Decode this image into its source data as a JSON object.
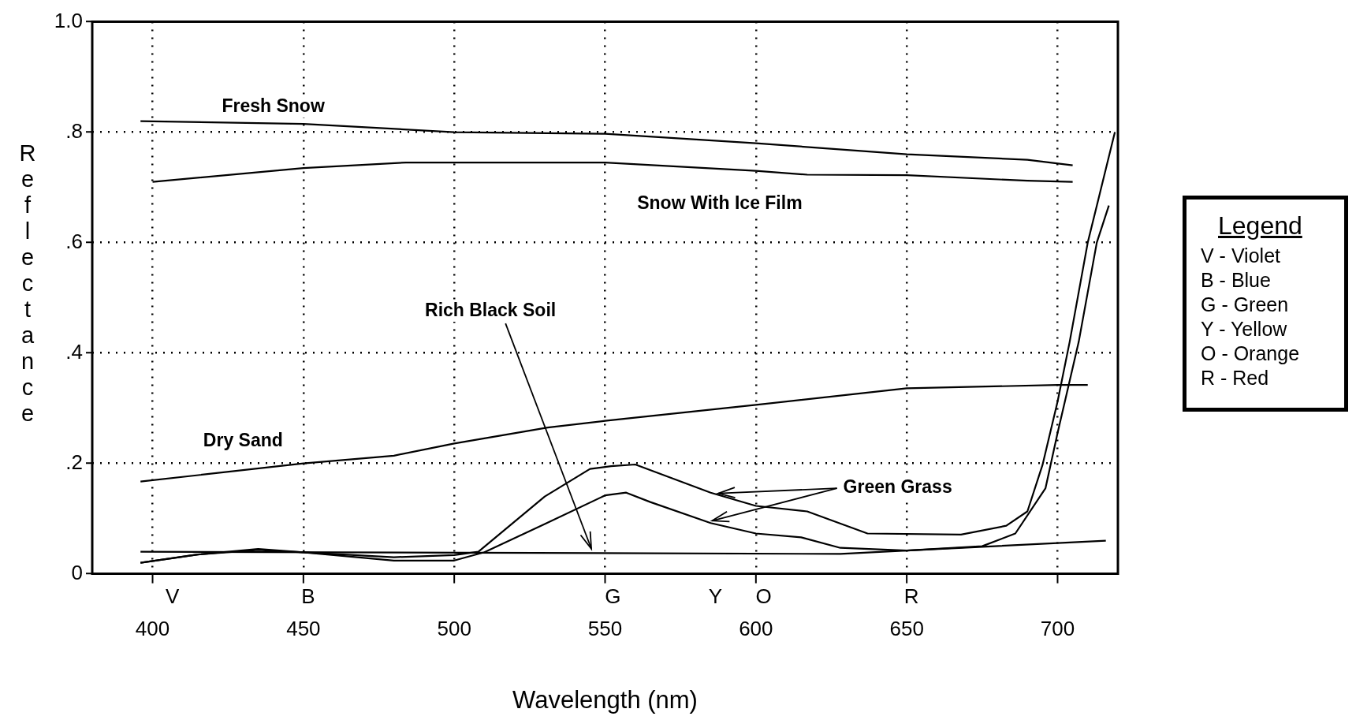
{
  "chart_data": {
    "type": "line",
    "xlabel": "Wavelength (nm)",
    "ylabel": "Reflectance",
    "xlim": [
      380,
      720
    ],
    "xticks": [
      400,
      450,
      500,
      550,
      600,
      650,
      700
    ],
    "ylim": [
      0,
      1
    ],
    "yticks": [
      0,
      {
        "value": 0.2,
        "label": ".2"
      },
      {
        "value": 0.4,
        "label": ".4"
      },
      {
        "value": 0.6,
        "label": ".6"
      },
      {
        "value": 0.8,
        "label": ".8"
      },
      {
        "value": 1,
        "label": "1.0"
      }
    ],
    "grid": true,
    "legend": false,
    "marker": "none",
    "line_style": "solid",
    "annotations": [
      "Legend",
      "V - Violet",
      "B - Blue",
      "G - Green",
      "Y - Yellow",
      "O - Orange",
      "R - Red",
      "V",
      "B",
      "G",
      "Y",
      "O",
      "R"
    ],
    "series": [
      {
        "name": "Fresh Snow",
        "color": "#000000",
        "x": [
          396,
          450,
          500,
          550,
          600,
          650,
          690,
          705
        ],
        "values": [
          0.82,
          0.815,
          0.8,
          0.797,
          0.78,
          0.76,
          0.75,
          0.74
        ]
      },
      {
        "name": "Snow With Ice Film",
        "color": "#000000",
        "x": [
          400,
          450,
          484,
          550,
          600,
          617,
          650,
          690,
          705
        ],
        "values": [
          0.71,
          0.735,
          0.745,
          0.745,
          0.73,
          0.723,
          0.722,
          0.712,
          0.71
        ]
      },
      {
        "name": "Dry Sand",
        "color": "#000000",
        "x": [
          396,
          450,
          480,
          500,
          531,
          550,
          600,
          650,
          700,
          710
        ],
        "values": [
          0.167,
          0.2,
          0.214,
          0.236,
          0.265,
          0.277,
          0.306,
          0.336,
          0.342,
          0.342
        ]
      },
      {
        "name": "Rich Black Soil",
        "color": "#000000",
        "x": [
          396,
          628,
          650,
          716
        ],
        "values": [
          0.04,
          0.036,
          0.042,
          0.06
        ]
      },
      {
        "name": "Green Grass",
        "color": "#000000",
        "x": [
          396,
          415,
          435,
          450,
          480,
          500,
          508,
          530,
          545,
          552,
          560,
          585,
          600,
          617,
          637,
          668,
          683,
          690,
          695,
          700,
          704,
          710,
          719
        ],
        "values": [
          0.02,
          0.035,
          0.045,
          0.039,
          0.03,
          0.034,
          0.04,
          0.14,
          0.19,
          0.195,
          0.198,
          0.147,
          0.123,
          0.113,
          0.073,
          0.071,
          0.087,
          0.113,
          0.197,
          0.312,
          0.42,
          0.6,
          0.8
        ]
      },
      {
        "color": "#000000",
        "x": [
          396,
          415,
          435,
          450,
          480,
          500,
          510,
          530,
          550,
          557,
          565,
          585,
          600,
          615,
          628,
          650,
          675,
          686,
          696,
          700,
          707,
          713,
          717
        ],
        "values": [
          0.02,
          0.035,
          0.043,
          0.039,
          0.024,
          0.024,
          0.039,
          0.09,
          0.142,
          0.147,
          0.13,
          0.092,
          0.073,
          0.066,
          0.047,
          0.042,
          0.05,
          0.073,
          0.155,
          0.255,
          0.42,
          0.6,
          0.667
        ]
      }
    ]
  }
}
